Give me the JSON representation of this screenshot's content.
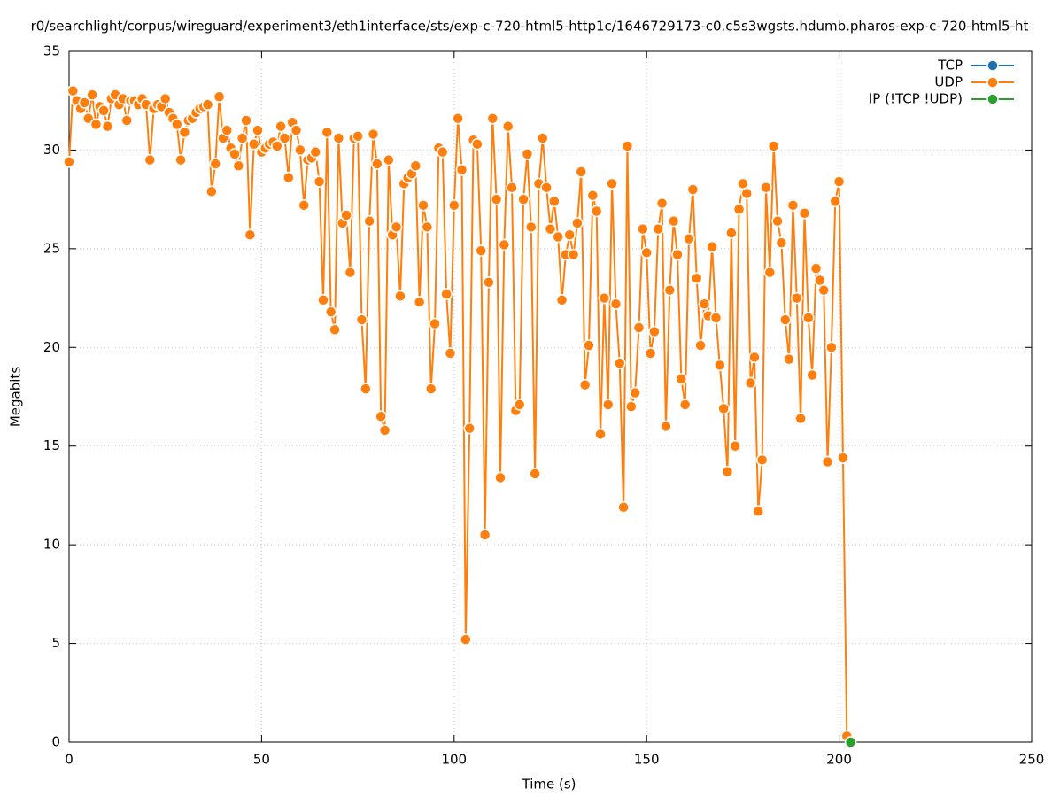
{
  "chart_data": {
    "type": "line",
    "title": "r0/searchlight/corpus/wireguard/experiment3/eth1interface/sts/exp-c-720-html5-http1c/1646729173-c0.c5s3wgsts.hdumb.pharos-exp-c-720-html5-ht",
    "xlabel": "Time (s)",
    "ylabel": "Megabits",
    "xlim": [
      0,
      250
    ],
    "xticks": [
      0,
      50,
      100,
      150,
      200,
      250
    ],
    "ylim": [
      0,
      35
    ],
    "yticks": [
      0,
      5,
      10,
      15,
      20,
      25,
      30,
      35
    ],
    "grid": true,
    "legend": "top-right",
    "series": [
      {
        "name": "TCP",
        "color": "#1f6fb4",
        "x": [],
        "values": []
      },
      {
        "name": "UDP",
        "color": "#ff7f0e",
        "x": [
          0,
          1,
          2,
          3,
          4,
          5,
          6,
          7,
          8,
          9,
          10,
          11,
          12,
          13,
          14,
          15,
          16,
          17,
          18,
          19,
          20,
          21,
          22,
          23,
          24,
          25,
          26,
          27,
          28,
          29,
          30,
          31,
          32,
          33,
          34,
          35,
          36,
          37,
          38,
          39,
          40,
          41,
          42,
          43,
          44,
          45,
          46,
          47,
          48,
          49,
          50,
          51,
          52,
          53,
          54,
          55,
          56,
          57,
          58,
          59,
          60,
          61,
          62,
          63,
          64,
          65,
          66,
          67,
          68,
          69,
          70,
          71,
          72,
          73,
          74,
          75,
          76,
          77,
          78,
          79,
          80,
          81,
          82,
          83,
          84,
          85,
          86,
          87,
          88,
          89,
          90,
          91,
          92,
          93,
          94,
          95,
          96,
          97,
          98,
          99,
          100,
          101,
          102,
          103,
          104,
          105,
          106,
          107,
          108,
          109,
          110,
          111,
          112,
          113,
          114,
          115,
          116,
          117,
          118,
          119,
          120,
          121,
          122,
          123,
          124,
          125,
          126,
          127,
          128,
          129,
          130,
          131,
          132,
          133,
          134,
          135,
          136,
          137,
          138,
          139,
          140,
          141,
          142,
          143,
          144,
          145,
          146,
          147,
          148,
          149,
          150,
          151,
          152,
          153,
          154,
          155,
          156,
          157,
          158,
          159,
          160,
          161,
          162,
          163,
          164,
          165,
          166,
          167,
          168,
          169,
          170,
          171,
          172,
          173,
          174,
          175,
          176,
          177,
          178,
          179,
          180,
          181,
          182,
          183,
          184,
          185,
          186,
          187,
          188,
          189,
          190,
          191,
          192,
          193,
          194,
          195,
          196,
          197,
          198,
          199,
          200,
          201,
          202
        ],
        "values": [
          29.4,
          33.0,
          32.5,
          32.1,
          32.4,
          31.6,
          32.8,
          31.3,
          32.2,
          32.0,
          31.2,
          32.6,
          32.8,
          32.3,
          32.6,
          31.5,
          32.5,
          32.5,
          32.3,
          32.6,
          32.3,
          29.5,
          32.1,
          32.3,
          32.2,
          32.6,
          31.9,
          31.6,
          31.3,
          29.5,
          30.9,
          31.5,
          31.6,
          31.9,
          32.1,
          32.2,
          32.3,
          27.9,
          29.3,
          32.7,
          30.6,
          31.0,
          30.1,
          29.8,
          29.2,
          30.6,
          31.5,
          25.7,
          30.3,
          31.0,
          29.9,
          30.1,
          30.3,
          30.4,
          30.2,
          31.2,
          30.6,
          28.6,
          31.4,
          31.0,
          30.0,
          27.2,
          29.5,
          29.6,
          29.9,
          28.4,
          22.4,
          30.9,
          21.8,
          20.9,
          30.6,
          26.3,
          26.7,
          23.8,
          30.6,
          30.7,
          21.4,
          17.9,
          26.4,
          30.8,
          29.3,
          16.5,
          15.8,
          29.5,
          25.7,
          26.1,
          22.6,
          28.3,
          28.6,
          28.8,
          29.2,
          22.3,
          27.2,
          26.1,
          17.9,
          21.2,
          30.1,
          29.9,
          22.7,
          19.7,
          27.2,
          31.6,
          29.0,
          5.2,
          15.9,
          30.5,
          30.3,
          24.9,
          10.5,
          23.3,
          31.6,
          27.5,
          13.4,
          25.2,
          31.2,
          28.1,
          16.8,
          17.1,
          27.5,
          29.8,
          26.1,
          13.6,
          28.3,
          30.6,
          28.1,
          26.0,
          27.4,
          25.6,
          22.4,
          24.7,
          25.7,
          24.7,
          26.3,
          28.9,
          18.1,
          20.1,
          27.7,
          26.9,
          15.6,
          22.5,
          17.1,
          28.3,
          22.2,
          19.2,
          11.9,
          30.2,
          17.0,
          17.7,
          21.0,
          26.0,
          24.8,
          19.7,
          20.8,
          26.0,
          27.3,
          16.0,
          22.9,
          26.4,
          24.7,
          18.4,
          17.1,
          25.5,
          28.0,
          23.5,
          20.1,
          22.2,
          21.6,
          25.1,
          21.5,
          19.1,
          16.9,
          13.7,
          25.8,
          15.0,
          27.0,
          28.3,
          27.8,
          18.2,
          19.5,
          11.7,
          14.3,
          28.1,
          23.8,
          30.2,
          26.4,
          25.3,
          21.4,
          19.4,
          27.2,
          22.5,
          16.4,
          26.8,
          21.5,
          18.6,
          24.0,
          23.4,
          22.9,
          14.2,
          20.0,
          27.4,
          28.4,
          14.4,
          0.3
        ]
      },
      {
        "name": "IP (!TCP  !UDP)",
        "color": "#2ca02c",
        "x": [
          203
        ],
        "values": [
          0
        ]
      }
    ]
  }
}
